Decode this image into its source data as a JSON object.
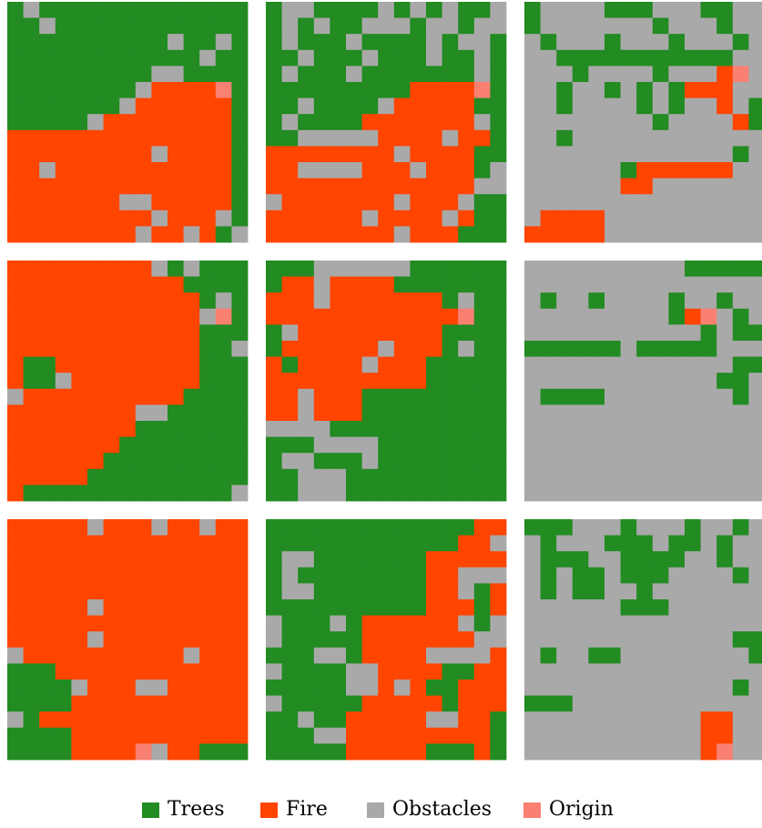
{
  "colors": {
    "tree": "#228b22",
    "fire": "#ff4500",
    "obstacle": "#a9a9a9",
    "origin": "#fa8072"
  },
  "panels": [
    {
      "rows": [
        "TOTTTTTTTTTTTTT",
        "TTOTTTTTTTTTTTT",
        "TTTTTTTTTTOTTOT",
        "TTTTTTTTTTTTOTT",
        "TTTTTTTTTOOTTTT",
        "TTTTTTTTOFFFFRT",
        "TTTTTTTOFFFFFFT",
        "TTTTTOFFFFFFFFT",
        "FFFFFFFFFFFFFFT",
        "FFFFFFFFFOFFFFT",
        "FFOFFFFFFFFFFFT",
        "FFFFFFFFFFFFFFT",
        "FFFFFFFOOFFFFFT",
        "FFFFFFFFFOFFFOT",
        "FFFFFFFFOFFOFTO"
      ]
    },
    {
      "rows": [
        "TOOTTTTOTOTOTTO",
        "TOTOTTOOOTOOTOO",
        "TOTTTOTTTTOTOOT",
        "TTOTTTOTTTOTTOT",
        "TOTTTOTTTTTTTOT",
        "TTTTTTTTTFFFFRT",
        "TTOTTTTOFFFFFTT",
        "TOTTTTFFFFFFFOT",
        "TTOOOOOFFFFOFFT",
        "FFFFFFFFOFFFFTT",
        "FFOOOOFFFOFFFTO",
        "FFFFFFFFFFFFFOO",
        "OFFFFFFFOFFFOTT",
        "FFFFFFOFFFFOFTT",
        "FFFFFFFFOFFFTTT"
      ]
    },
    {
      "rows": [
        "TOOOOTTTOOOTTOO",
        "TOOOOOOOTOOOTOO",
        "OTOOOTOOOTOOOTO",
        "OOTTTTTTTTTTTOO",
        "OOOTOOOOTOOOFRO",
        "OOTOOTOTOTFFFOO",
        "OOTOOOOTOTOOFOT",
        "OOOOOOOOTOOOOFT",
        "OOTOOOOOOOOOOOO",
        "OOOOOOOOOOOOOTO",
        "OOOOOOTFFFFFFOO",
        "OOOOOOFFOOOOOOO",
        "OOOOOOOOOOOOOOO",
        "OFFFFOOOOOOOOOO",
        "FFFFFOOOOOOOOOO"
      ]
    },
    {
      "rows": [
        "FFFFFFFFFOTOTTT",
        "FFFFFFFFFFFTTTT",
        "FFFFFFFFFFFFTOT",
        "FFFFFFFFFFFFORT",
        "FFFFFFFFFFFFTTT",
        "FFFFFFFFFFFFTTO",
        "FTTFFFFFFFFFTTT",
        "FTTOFFFFFFFFTTT",
        "OFFFFFFFFFFTTTT",
        "FFFFFFFFOOTTTTT",
        "FFFFFFFFTTTTTTT",
        "FFFFFFFTTTTTTTT",
        "FFFFFFTTTTTTTTT",
        "FFFFFTTTTTTTTTT",
        "FTTTTTTTTTTTTTO"
      ]
    },
    {
      "rows": [
        "TTTOOOOOOTTTTTT",
        "TFFOFFFFTTTTTTT",
        "FFFOFFFFFFFTOTT",
        "FFFFFFFFFFFFRTT",
        "TOFFFFFFFFFTTTT",
        "TFFFFFFOFFFTOTT",
        "FTFFFFOFFFTTTTT",
        "FFFFFFFFFFTTTTT",
        "FFOFFFTTTTTTTTT",
        "FFOFFFTTTTTTTTT",
        "OOOOTTTTTTTTTTT",
        "TTTOOOOTTTTTTTT",
        "TOOTTTOTTTTTTTT",
        "TTOOOTTTTTTTTTT",
        "TTOOOTTTTTTTTTT"
      ]
    },
    {
      "rows": [
        "OOOOOOOOOOTTTTT",
        "OOOOOOOOOOOOOOO",
        "OTOOTOOOOTOOTOO",
        "OOOOOOOOOTFROTO",
        "OOOOOOOOOOOTOTT",
        "TTTTTTOTTTTTOOO",
        "OOOOOOOOOOOOOTT",
        "OOOOOOOOOOOOTTO",
        "OTTTTOOOOOOOOTO",
        "OOOOOOOOOOOOOOO",
        "OOOOOOOOOOOOOOO",
        "OOOOOOOOOOOOOOO",
        "OOOOOOOOOOOOOOO",
        "OOOOOOOOOOOOOOO",
        "OOOOOOOOOOOOOOO"
      ]
    },
    {
      "rows": [
        "FFFFFOFFFOFFOFF",
        "FFFFFFFFFFFFFFF",
        "FFFFFFFFFFFFFFF",
        "FFFFFFFFFFFFFFF",
        "FFFFFFFFFFFFFFF",
        "FFFFFOFFFFFFFFF",
        "FFFFFFFFFFFFFFF",
        "FFFFFOFFFFFFFFF",
        "OFFFFFFFFFFOFFF",
        "TTTFFFFFFFFFFFF",
        "TTTTOFFFOOFFFFF",
        "TTTTFFFFFFFFFFF",
        "OTFFFFFFFFFFFFF",
        "TTTTFFFFFFFFFFF",
        "TTTTFFFFROFFTTT"
      ]
    },
    {
      "rows": [
        "TTTTTTTTTTTTTFF",
        "TTTTTTTTTTTTFFO",
        "TOOTTTTTTTFFFFF",
        "TOTTTTTTTTFFOOO",
        "TOOTTTTTTTFFOTF",
        "TTTTTTTTTTFFFTF",
        "OTTTOTFFFFFFOTO",
        "OTTTTTFFFFFFFOO",
        "TTTOOTFFFFOOOOF",
        "OTTTTOOFFFFTTFF",
        "TTTTTOOFOFTTFFF",
        "OTTTTTFFFFFTFFF",
        "TTOTTFFFFFOOFFT",
        "TTTOOFFFFFFFFFT",
        "TTTTTFFFFFTTTFT"
      ]
    },
    {
      "rows": [
        "TTTOOOTOOOTOOTO",
        "OTOOOTTTOTTOTOO",
        "OTTTOOTTTTOOTOO",
        "OTOTTOTTTOOOOTO",
        "OTOTTOOTOOOOOOO",
        "OOOOOOTTTOOOOOO",
        "OOOOOOOOOOOOOOO",
        "OOOOOOOOOOOOOTT",
        "OTOOTTOOOOOOOOT",
        "OOOOOOOOOOOOOOO",
        "OOOOOOOOOOOOOTO",
        "TTTOOOOOOOOOOOO",
        "OOOOOOOOOOOFFOO",
        "OOOOOOOOOOOFFOO",
        "OOOOOOOOOOOFROO"
      ]
    }
  ],
  "legend": [
    {
      "label": "Trees",
      "color": "#228b22"
    },
    {
      "label": "Fire",
      "color": "#ff4500"
    },
    {
      "label": "Obstacles",
      "color": "#a9a9a9"
    },
    {
      "label": "Origin",
      "color": "#fa8072"
    }
  ]
}
